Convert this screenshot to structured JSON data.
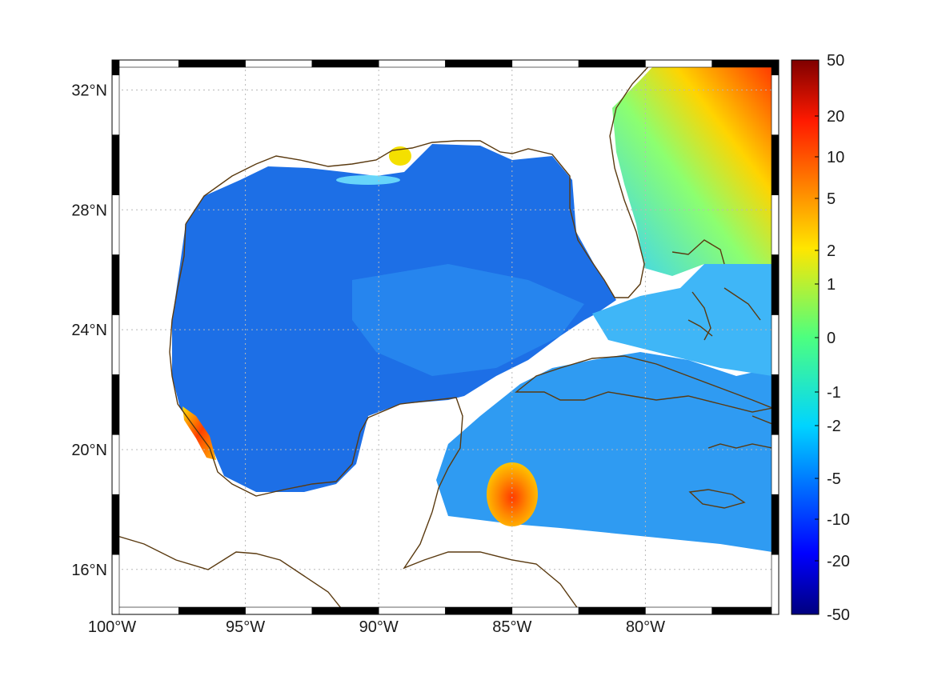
{
  "map": {
    "region": "Gulf of Mexico / Caribbean",
    "lon_range": [
      -100,
      -75
    ],
    "lat_range": [
      14.5,
      33
    ],
    "lon_ticks": [
      {
        "value": -100,
        "label": "100°W"
      },
      {
        "value": -95,
        "label": "95°W"
      },
      {
        "value": -90,
        "label": "90°W"
      },
      {
        "value": -85,
        "label": "85°W"
      },
      {
        "value": -80,
        "label": "80°W"
      }
    ],
    "lat_ticks": [
      {
        "value": 32,
        "label": "32°N"
      },
      {
        "value": 28,
        "label": "28°N"
      },
      {
        "value": 24,
        "label": "24°N"
      },
      {
        "value": 20,
        "label": "20°N"
      },
      {
        "value": 16,
        "label": "16°N"
      }
    ],
    "grid": "dotted",
    "coastline_color": "#5a3a10",
    "frame_style": "alternating black/white"
  },
  "colorbar": {
    "orientation": "vertical",
    "placement": "right",
    "colormap": "jet",
    "range": [
      -50,
      50
    ],
    "ticks": [
      "50",
      "20",
      "10",
      "5",
      "2",
      "1",
      "0",
      "-1",
      "-2",
      "-5",
      "-10",
      "-20",
      "-50"
    ]
  }
}
